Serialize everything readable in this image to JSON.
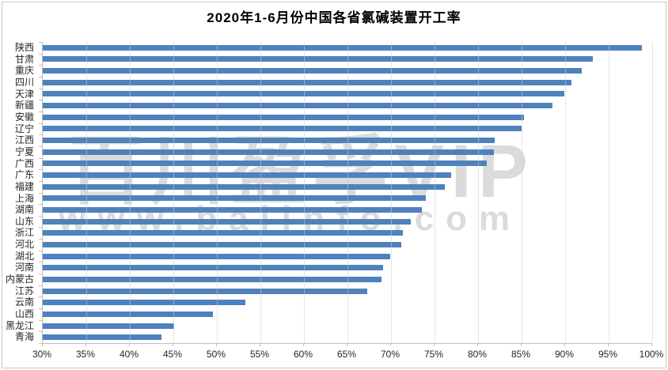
{
  "title": "2020年1-6月份中国各省氯碱装置开工率",
  "watermark": {
    "line1": "百川盈孚VIP",
    "line2": "www.baiinfo.com"
  },
  "colors": {
    "bar": "#4F81BD",
    "gridline": "#D9D9D9",
    "axis_line": "#BFBFBF",
    "label_text": "#262626",
    "title_text": "#000000",
    "watermark_text": "#D4D4D4"
  },
  "chart_data": {
    "type": "bar",
    "orientation": "horizontal",
    "title": "2020年1-6月份中国各省氯碱装置开工率",
    "xlabel": "",
    "ylabel": "",
    "unit": "%",
    "xlim": [
      30,
      100
    ],
    "tick_step": 5,
    "grid": true,
    "legend": "none",
    "x_tick_labels": [
      "30%",
      "35%",
      "40%",
      "45%",
      "50%",
      "55%",
      "60%",
      "65%",
      "70%",
      "75%",
      "80%",
      "85%",
      "90%",
      "95%",
      "100%"
    ],
    "categories": [
      "陕西",
      "甘肃",
      "重庆",
      "四川",
      "天津",
      "新疆",
      "安徽",
      "辽宁",
      "江西",
      "宁夏",
      "广西",
      "广东",
      "福建",
      "上海",
      "湖南",
      "山东",
      "浙江",
      "河北",
      "湖北",
      "河南",
      "内蒙古",
      "江苏",
      "云南",
      "山西",
      "黑龙江",
      "青海"
    ],
    "values": [
      98.8,
      93.2,
      91.9,
      90.7,
      89.9,
      88.5,
      85.3,
      85.0,
      81.9,
      81.8,
      81.0,
      76.9,
      76.2,
      74.0,
      73.5,
      72.3,
      71.4,
      71.2,
      69.9,
      69.1,
      68.9,
      67.3,
      53.3,
      49.5,
      45.1,
      43.6
    ]
  }
}
